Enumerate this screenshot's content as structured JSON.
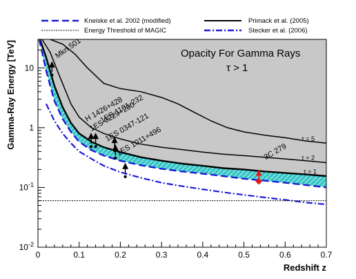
{
  "chart_data": {
    "type": "line",
    "title": "Opacity For Gamma Rays",
    "subtitle": "τ > 1",
    "xlabel": "Redshift z",
    "ylabel": "Gamma-Ray Energy [TeV]",
    "xlim": [
      0,
      0.7
    ],
    "ylim": [
      0.01,
      30
    ],
    "yscale": "log",
    "x_ticks": [
      "0",
      "0.1",
      "0.2",
      "0.3",
      "0.4",
      "0.5",
      "0.6",
      "0.7"
    ],
    "y_ticks": [
      "10",
      "1",
      "10-1",
      "10-2"
    ],
    "legend": [
      {
        "name": "Kneiske et al. 2002 (modified)",
        "color": "#1a1ad6",
        "style": "dashed"
      },
      {
        "name": "Energy Threshold of MAGIC",
        "color": "#000000",
        "style": "dotted"
      },
      {
        "name": "Primack et al. (2005)",
        "color": "#000000",
        "style": "solid"
      },
      {
        "name": "Stecker et al. (2006)",
        "color": "#1a1ad6",
        "style": "dashdot"
      }
    ],
    "series": [
      {
        "key": "primack_tau1",
        "label": "τ = 1",
        "color": "#000000",
        "style": "solid",
        "x": [
          0.005,
          0.02,
          0.04,
          0.06,
          0.08,
          0.1,
          0.13,
          0.16,
          0.2,
          0.25,
          0.3,
          0.35,
          0.4,
          0.45,
          0.5,
          0.55,
          0.6,
          0.65,
          0.7
        ],
        "y": [
          30,
          15,
          5,
          2.2,
          1.2,
          0.8,
          0.58,
          0.47,
          0.39,
          0.32,
          0.28,
          0.25,
          0.23,
          0.21,
          0.2,
          0.185,
          0.175,
          0.165,
          0.155
        ]
      },
      {
        "key": "primack_tau2",
        "label": "τ = 2",
        "color": "#000000",
        "style": "solid",
        "x": [
          0.01,
          0.03,
          0.05,
          0.08,
          0.1,
          0.13,
          0.16,
          0.2,
          0.25,
          0.3,
          0.35,
          0.4,
          0.45,
          0.5,
          0.55,
          0.6,
          0.65,
          0.7
        ],
        "y": [
          30,
          18,
          8,
          2.5,
          1.5,
          1.0,
          0.8,
          0.65,
          0.53,
          0.47,
          0.43,
          0.39,
          0.36,
          0.34,
          0.32,
          0.3,
          0.28,
          0.26
        ]
      },
      {
        "key": "primack_tau5",
        "label": "τ = 5",
        "color": "#000000",
        "style": "solid",
        "x": [
          0.03,
          0.06,
          0.09,
          0.12,
          0.16,
          0.2,
          0.25,
          0.3,
          0.34,
          0.38,
          0.42,
          0.46,
          0.5,
          0.55,
          0.6,
          0.65,
          0.7
        ],
        "y": [
          30,
          25,
          17,
          10,
          5.5,
          4.5,
          4.0,
          3.2,
          2.5,
          1.8,
          1.3,
          1.0,
          0.85,
          0.75,
          0.68,
          0.6,
          0.55
        ]
      },
      {
        "key": "kneiske_lower",
        "color": "#1a1ad6",
        "style": "dashed",
        "x": [
          0.003,
          0.02,
          0.04,
          0.06,
          0.08,
          0.1,
          0.13,
          0.16,
          0.2,
          0.25,
          0.3,
          0.35,
          0.4,
          0.45,
          0.5,
          0.55,
          0.6,
          0.65,
          0.7
        ],
        "y": [
          30,
          9,
          2.8,
          1.4,
          0.85,
          0.58,
          0.42,
          0.34,
          0.28,
          0.235,
          0.205,
          0.185,
          0.17,
          0.155,
          0.14,
          0.13,
          0.12,
          0.11,
          0.1
        ]
      },
      {
        "key": "stecker",
        "color": "#1a1ad6",
        "style": "dashdot",
        "x": [
          0.02,
          0.04,
          0.06,
          0.08,
          0.1,
          0.13,
          0.16,
          0.2,
          0.25,
          0.3,
          0.35,
          0.4,
          0.45,
          0.5,
          0.55,
          0.6,
          0.65,
          0.7
        ],
        "y": [
          2.5,
          1.3,
          0.8,
          0.55,
          0.4,
          0.3,
          0.23,
          0.18,
          0.145,
          0.12,
          0.105,
          0.093,
          0.083,
          0.075,
          0.068,
          0.062,
          0.056,
          0.052
        ]
      },
      {
        "key": "magic_threshold",
        "color": "#000000",
        "style": "dotted",
        "x": [
          0,
          0.7
        ],
        "y": [
          0.06,
          0.06
        ]
      }
    ],
    "tau_labels": [
      "τ = 5",
      "τ = 2",
      "τ = 1"
    ],
    "sources": [
      {
        "name": "Mkn 501",
        "z": 0.034,
        "emax": 11
      },
      {
        "name": "H 1426+428",
        "z": 0.129,
        "emax": 0.7
      },
      {
        "name": "1ES 0229+200",
        "z": 0.14,
        "emax": 0.7
      },
      {
        "name": "1ES 1101-232",
        "z": 0.186,
        "emax": 0.6
      },
      {
        "name": "1ES 0347-121",
        "z": 0.188,
        "emax": 0.45
      },
      {
        "name": "1ES 1011+496",
        "z": 0.212,
        "emax": 0.22
      },
      {
        "name": "3C 279",
        "z": 0.536,
        "emax": 0.17
      }
    ],
    "grid": false,
    "legend_position": "top"
  }
}
